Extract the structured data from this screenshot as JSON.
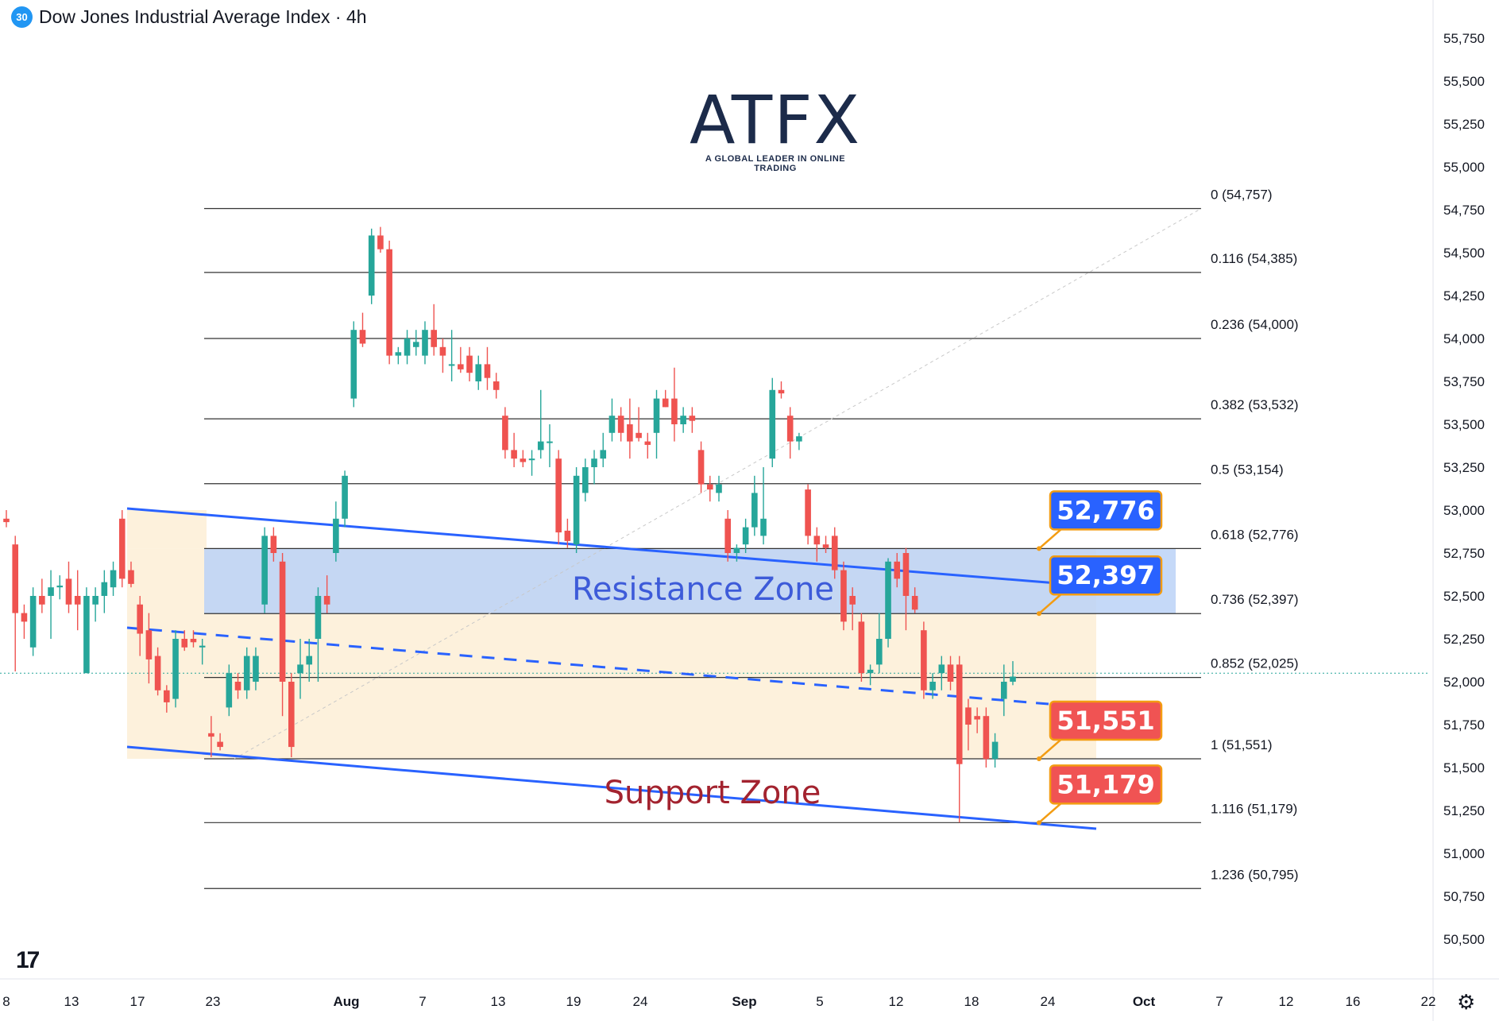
{
  "header": {
    "badge": "30",
    "title": "Dow Jones Industrial Average Index · 4h"
  },
  "logo": {
    "main": "ATFX",
    "sub": "A GLOBAL LEADER IN ONLINE TRADING"
  },
  "tv_logo": "17",
  "settings_icon": "gear-icon",
  "colors": {
    "up": "#26a69a",
    "down": "#ef5350",
    "trendline": "#2962ff",
    "resistance_fill": "#bbd2f7",
    "support_fill": "#fbdde1",
    "range_fill": "#fdf1dc",
    "blue_label": "#2962ff",
    "red_label": "#f05353"
  },
  "chart_data": {
    "type": "candlestick",
    "title": "Dow Jones Industrial Average Index · 4h",
    "y_axis": {
      "ticks": [
        "55,750",
        "55,500",
        "55,250",
        "55,000",
        "54,750",
        "54,500",
        "54,250",
        "54,000",
        "53,750",
        "53,500",
        "53,250",
        "53,000",
        "52,750",
        "52,500",
        "52,250",
        "52,000",
        "51,750",
        "51,500",
        "51,250",
        "51,000",
        "50,750",
        "50,500"
      ],
      "tick_values": [
        55750,
        55500,
        55250,
        55000,
        54750,
        54500,
        54250,
        54000,
        53750,
        53500,
        53250,
        53000,
        52750,
        52500,
        52250,
        52000,
        51750,
        51500,
        51250,
        51000,
        50750,
        50500
      ],
      "range": [
        50330,
        55850
      ]
    },
    "x_axis": {
      "ticks": [
        "8",
        "13",
        "17",
        "23",
        "Aug",
        "7",
        "13",
        "19",
        "24",
        "Sep",
        "5",
        "12",
        "18",
        "24",
        "Oct",
        "7",
        "12",
        "16",
        "22"
      ]
    },
    "fib_levels": [
      {
        "ratio": "0",
        "value": 54757,
        "label": "0 (54,757)"
      },
      {
        "ratio": "0.116",
        "value": 54385,
        "label": "0.116 (54,385)"
      },
      {
        "ratio": "0.236",
        "value": 54000,
        "label": "0.236 (54,000)"
      },
      {
        "ratio": "0.382",
        "value": 53532,
        "label": "0.382 (53,532)"
      },
      {
        "ratio": "0.5",
        "value": 53154,
        "label": "0.5 (53,154)"
      },
      {
        "ratio": "0.618",
        "value": 52776,
        "label": "0.618 (52,776)"
      },
      {
        "ratio": "0.736",
        "value": 52397,
        "label": "0.736 (52,397)"
      },
      {
        "ratio": "0.852",
        "value": 52025,
        "label": "0.852 (52,025)"
      },
      {
        "ratio": "1",
        "value": 51551,
        "label": "1 (51,551)"
      },
      {
        "ratio": "1.116",
        "value": 51179,
        "label": "1.116 (51,179)"
      },
      {
        "ratio": "1.236",
        "value": 50795,
        "label": "1.236 (50,795)"
      }
    ],
    "zones": [
      {
        "name": "Resistance Zone",
        "from": 52397,
        "to": 52776
      },
      {
        "name": "Support Zone",
        "from": 51179,
        "to": 51551
      }
    ],
    "price_callouts": [
      {
        "text": "52,776",
        "value": 52776,
        "color": "blue"
      },
      {
        "text": "52,397",
        "value": 52397,
        "color": "blue"
      },
      {
        "text": "51,551",
        "value": 51551,
        "color": "red"
      },
      {
        "text": "51,179",
        "value": 51179,
        "color": "red"
      }
    ],
    "current_price": 52050,
    "candles": [
      {
        "o": 52950,
        "h": 53000,
        "l": 52900,
        "c": 52930
      },
      {
        "o": 52800,
        "h": 52850,
        "l": 52060,
        "c": 52400
      },
      {
        "o": 52400,
        "h": 52450,
        "l": 52250,
        "c": 52350
      },
      {
        "o": 52200,
        "h": 52550,
        "l": 52150,
        "c": 52500
      },
      {
        "o": 52500,
        "h": 52600,
        "l": 52400,
        "c": 52450
      },
      {
        "o": 52500,
        "h": 52650,
        "l": 52250,
        "c": 52550
      },
      {
        "o": 52550,
        "h": 52620,
        "l": 52480,
        "c": 52560
      },
      {
        "o": 52600,
        "h": 52700,
        "l": 52400,
        "c": 52450
      },
      {
        "o": 52500,
        "h": 52650,
        "l": 52300,
        "c": 52450
      },
      {
        "o": 52050,
        "h": 52550,
        "l": 52050,
        "c": 52500
      },
      {
        "o": 52450,
        "h": 52550,
        "l": 52350,
        "c": 52500
      },
      {
        "o": 52500,
        "h": 52650,
        "l": 52400,
        "c": 52580
      },
      {
        "o": 52550,
        "h": 52700,
        "l": 52500,
        "c": 52650
      },
      {
        "o": 52950,
        "h": 53000,
        "l": 52550,
        "c": 52600
      },
      {
        "o": 52650,
        "h": 52700,
        "l": 52550,
        "c": 52570
      },
      {
        "o": 52450,
        "h": 52500,
        "l": 52150,
        "c": 52280
      },
      {
        "o": 52300,
        "h": 52400,
        "l": 51990,
        "c": 52130
      },
      {
        "o": 52150,
        "h": 52200,
        "l": 51920,
        "c": 51950
      },
      {
        "o": 51950,
        "h": 51980,
        "l": 51820,
        "c": 51880
      },
      {
        "o": 51900,
        "h": 52300,
        "l": 51850,
        "c": 52250
      },
      {
        "o": 52250,
        "h": 52300,
        "l": 52180,
        "c": 52200
      },
      {
        "o": 52250,
        "h": 52300,
        "l": 52200,
        "c": 52230
      },
      {
        "o": 52200,
        "h": 52250,
        "l": 52100,
        "c": 52210
      },
      {
        "o": 51700,
        "h": 51800,
        "l": 51560,
        "c": 51680
      },
      {
        "o": 51650,
        "h": 51700,
        "l": 51600,
        "c": 51620
      },
      {
        "o": 51850,
        "h": 52100,
        "l": 51800,
        "c": 52050
      },
      {
        "o": 52000,
        "h": 52050,
        "l": 51900,
        "c": 51950
      },
      {
        "o": 51950,
        "h": 52200,
        "l": 51900,
        "c": 52150
      },
      {
        "o": 52000,
        "h": 52200,
        "l": 51950,
        "c": 52150
      },
      {
        "o": 52450,
        "h": 52900,
        "l": 52400,
        "c": 52850
      },
      {
        "o": 52850,
        "h": 52900,
        "l": 52700,
        "c": 52750
      },
      {
        "o": 52700,
        "h": 52750,
        "l": 51800,
        "c": 52000
      },
      {
        "o": 52000,
        "h": 52050,
        "l": 51560,
        "c": 51620
      },
      {
        "o": 52050,
        "h": 52250,
        "l": 51900,
        "c": 52100
      },
      {
        "o": 52100,
        "h": 52250,
        "l": 52000,
        "c": 52150
      },
      {
        "o": 52250,
        "h": 52550,
        "l": 52000,
        "c": 52500
      },
      {
        "o": 52500,
        "h": 52620,
        "l": 52400,
        "c": 52450
      },
      {
        "o": 52750,
        "h": 53050,
        "l": 52700,
        "c": 52950
      },
      {
        "o": 52950,
        "h": 53230,
        "l": 52900,
        "c": 53200
      },
      {
        "o": 53650,
        "h": 54100,
        "l": 53600,
        "c": 54050
      },
      {
        "o": 54050,
        "h": 54150,
        "l": 53950,
        "c": 53970
      },
      {
        "o": 54250,
        "h": 54640,
        "l": 54200,
        "c": 54600
      },
      {
        "o": 54600,
        "h": 54650,
        "l": 54500,
        "c": 54520
      },
      {
        "o": 54520,
        "h": 54570,
        "l": 53850,
        "c": 53900
      },
      {
        "o": 53900,
        "h": 53950,
        "l": 53850,
        "c": 53920
      },
      {
        "o": 53900,
        "h": 54050,
        "l": 53850,
        "c": 54000
      },
      {
        "o": 53950,
        "h": 54050,
        "l": 53900,
        "c": 53980
      },
      {
        "o": 53900,
        "h": 54100,
        "l": 53850,
        "c": 54050
      },
      {
        "o": 54050,
        "h": 54200,
        "l": 53900,
        "c": 53950
      },
      {
        "o": 53950,
        "h": 54000,
        "l": 53800,
        "c": 53900
      },
      {
        "o": 53850,
        "h": 54050,
        "l": 53750,
        "c": 53850
      },
      {
        "o": 53850,
        "h": 53950,
        "l": 53800,
        "c": 53820
      },
      {
        "o": 53900,
        "h": 53950,
        "l": 53750,
        "c": 53800
      },
      {
        "o": 53750,
        "h": 53900,
        "l": 53700,
        "c": 53850
      },
      {
        "o": 53850,
        "h": 53950,
        "l": 53700,
        "c": 53770
      },
      {
        "o": 53750,
        "h": 53800,
        "l": 53650,
        "c": 53700
      },
      {
        "o": 53550,
        "h": 53600,
        "l": 53300,
        "c": 53350
      },
      {
        "o": 53350,
        "h": 53450,
        "l": 53250,
        "c": 53300
      },
      {
        "o": 53300,
        "h": 53350,
        "l": 53250,
        "c": 53280
      },
      {
        "o": 53300,
        "h": 53350,
        "l": 53200,
        "c": 53300
      },
      {
        "o": 53350,
        "h": 53700,
        "l": 53300,
        "c": 53400
      },
      {
        "o": 53400,
        "h": 53500,
        "l": 53250,
        "c": 53400
      },
      {
        "o": 53300,
        "h": 53350,
        "l": 52800,
        "c": 52870
      },
      {
        "o": 52880,
        "h": 52950,
        "l": 52780,
        "c": 52820
      },
      {
        "o": 52800,
        "h": 53250,
        "l": 52750,
        "c": 53200
      },
      {
        "o": 53100,
        "h": 53300,
        "l": 53050,
        "c": 53250
      },
      {
        "o": 53250,
        "h": 53350,
        "l": 53150,
        "c": 53300
      },
      {
        "o": 53300,
        "h": 53450,
        "l": 53250,
        "c": 53350
      },
      {
        "o": 53450,
        "h": 53650,
        "l": 53400,
        "c": 53550
      },
      {
        "o": 53550,
        "h": 53600,
        "l": 53400,
        "c": 53450
      },
      {
        "o": 53500,
        "h": 53650,
        "l": 53300,
        "c": 53400
      },
      {
        "o": 53450,
        "h": 53600,
        "l": 53400,
        "c": 53420
      },
      {
        "o": 53400,
        "h": 53450,
        "l": 53300,
        "c": 53380
      },
      {
        "o": 53450,
        "h": 53700,
        "l": 53300,
        "c": 53650
      },
      {
        "o": 53650,
        "h": 53700,
        "l": 53600,
        "c": 53600
      },
      {
        "o": 53650,
        "h": 53830,
        "l": 53400,
        "c": 53500
      },
      {
        "o": 53500,
        "h": 53600,
        "l": 53450,
        "c": 53550
      },
      {
        "o": 53550,
        "h": 53600,
        "l": 53450,
        "c": 53520
      },
      {
        "o": 53350,
        "h": 53400,
        "l": 53100,
        "c": 53150
      },
      {
        "o": 53150,
        "h": 53200,
        "l": 53050,
        "c": 53120
      },
      {
        "o": 53100,
        "h": 53200,
        "l": 53050,
        "c": 53150
      },
      {
        "o": 52950,
        "h": 53000,
        "l": 52700,
        "c": 52750
      },
      {
        "o": 52750,
        "h": 52800,
        "l": 52700,
        "c": 52780
      },
      {
        "o": 52800,
        "h": 52950,
        "l": 52750,
        "c": 52900
      },
      {
        "o": 52900,
        "h": 53200,
        "l": 52850,
        "c": 53100
      },
      {
        "o": 52850,
        "h": 53250,
        "l": 52800,
        "c": 52950
      },
      {
        "o": 53300,
        "h": 53770,
        "l": 53250,
        "c": 53700
      },
      {
        "o": 53700,
        "h": 53750,
        "l": 53650,
        "c": 53680
      },
      {
        "o": 53550,
        "h": 53600,
        "l": 53300,
        "c": 53400
      },
      {
        "o": 53400,
        "h": 53450,
        "l": 53350,
        "c": 53430
      },
      {
        "o": 53120,
        "h": 53150,
        "l": 52800,
        "c": 52850
      },
      {
        "o": 52850,
        "h": 52900,
        "l": 52700,
        "c": 52800
      },
      {
        "o": 52800,
        "h": 52850,
        "l": 52750,
        "c": 52780
      },
      {
        "o": 52850,
        "h": 52900,
        "l": 52600,
        "c": 52650
      },
      {
        "o": 52650,
        "h": 52700,
        "l": 52300,
        "c": 52350
      },
      {
        "o": 52500,
        "h": 52550,
        "l": 52300,
        "c": 52450
      },
      {
        "o": 52350,
        "h": 52400,
        "l": 52000,
        "c": 52050
      },
      {
        "o": 52050,
        "h": 52100,
        "l": 51980,
        "c": 52070
      },
      {
        "o": 52100,
        "h": 52400,
        "l": 52050,
        "c": 52250
      },
      {
        "o": 52250,
        "h": 52720,
        "l": 52200,
        "c": 52700
      },
      {
        "o": 52700,
        "h": 52750,
        "l": 52550,
        "c": 52600
      },
      {
        "o": 52750,
        "h": 52780,
        "l": 52300,
        "c": 52500
      },
      {
        "o": 52500,
        "h": 52550,
        "l": 52400,
        "c": 52420
      },
      {
        "o": 52300,
        "h": 52350,
        "l": 51900,
        "c": 51950
      },
      {
        "o": 51950,
        "h": 52050,
        "l": 51900,
        "c": 52000
      },
      {
        "o": 52050,
        "h": 52150,
        "l": 51950,
        "c": 52100
      },
      {
        "o": 52100,
        "h": 52150,
        "l": 51950,
        "c": 52000
      },
      {
        "o": 52100,
        "h": 52150,
        "l": 51180,
        "c": 51520
      },
      {
        "o": 51850,
        "h": 51900,
        "l": 51600,
        "c": 51750
      },
      {
        "o": 51800,
        "h": 51850,
        "l": 51700,
        "c": 51780
      },
      {
        "o": 51800,
        "h": 51850,
        "l": 51500,
        "c": 51550
      },
      {
        "o": 51550,
        "h": 51700,
        "l": 51500,
        "c": 51650
      },
      {
        "o": 51900,
        "h": 52100,
        "l": 51800,
        "c": 52000
      },
      {
        "o": 52000,
        "h": 52120,
        "l": 51980,
        "c": 52030
      }
    ]
  }
}
